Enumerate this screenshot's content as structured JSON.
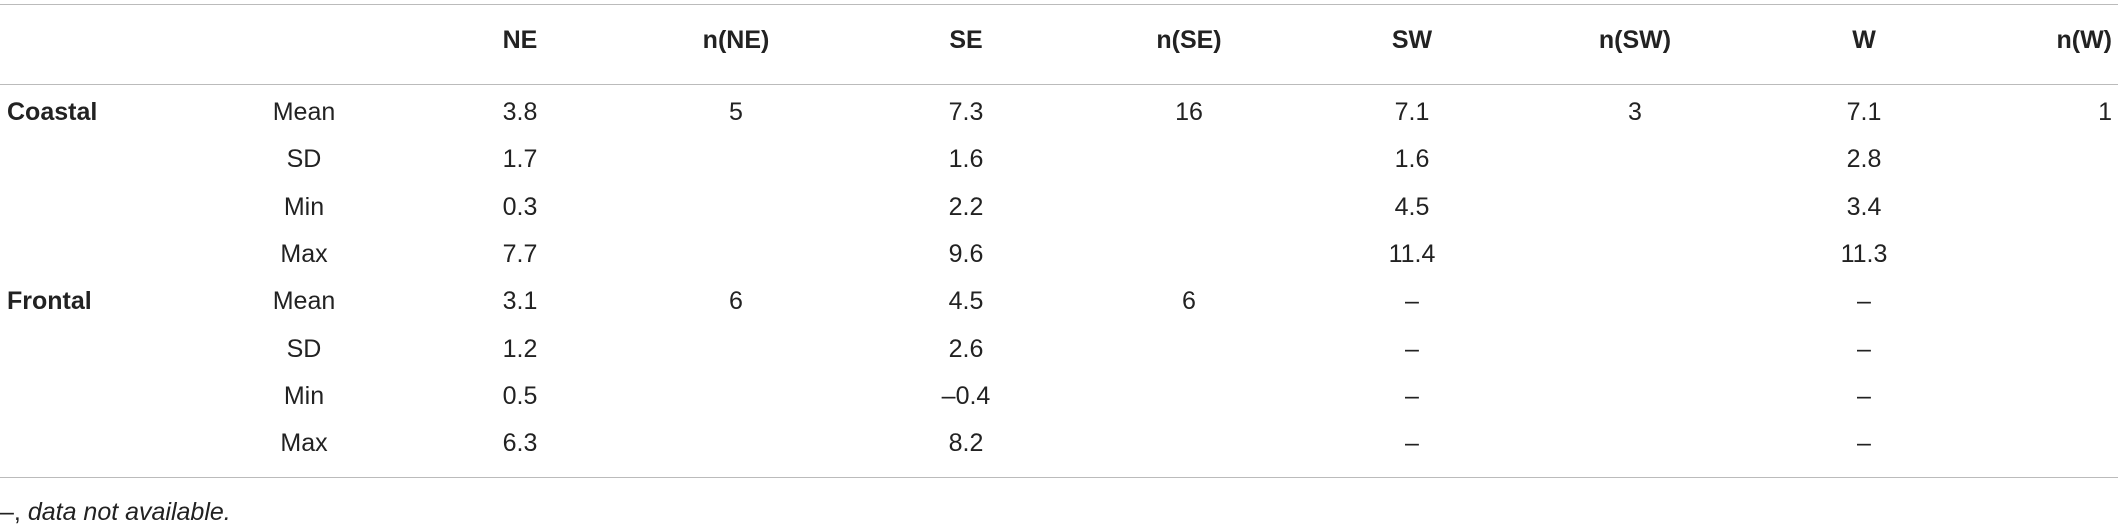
{
  "table": {
    "header": [
      null,
      null,
      "NE",
      "n(NE)",
      "SE",
      "n(SE)",
      "SW",
      "n(SW)",
      "W",
      "n(W)"
    ],
    "rows": [
      [
        "Coastal",
        "Mean",
        "3.8",
        "5",
        "7.3",
        "16",
        "7.1",
        "3",
        "7.1",
        "1"
      ],
      [
        null,
        "SD",
        "1.7",
        null,
        "1.6",
        null,
        "1.6",
        null,
        "2.8",
        null
      ],
      [
        null,
        "Min",
        "0.3",
        null,
        "2.2",
        null,
        "4.5",
        null,
        "3.4",
        null
      ],
      [
        null,
        "Max",
        "7.7",
        null,
        "9.6",
        null,
        "11.4",
        null,
        "11.3",
        null
      ],
      [
        "Frontal",
        "Mean",
        "3.1",
        "6",
        "4.5",
        "6",
        "–",
        null,
        "–",
        null
      ],
      [
        null,
        "SD",
        "1.2",
        null,
        "2.6",
        null,
        "–",
        null,
        "–",
        null
      ],
      [
        null,
        "Min",
        "0.5",
        null,
        "–0.4",
        null,
        "–",
        null,
        "–",
        null
      ],
      [
        null,
        "Max",
        "6.3",
        null,
        "8.2",
        null,
        "–",
        null,
        "–",
        null
      ]
    ]
  },
  "footnote": {
    "symbol": "–,",
    "text": "data not available."
  }
}
